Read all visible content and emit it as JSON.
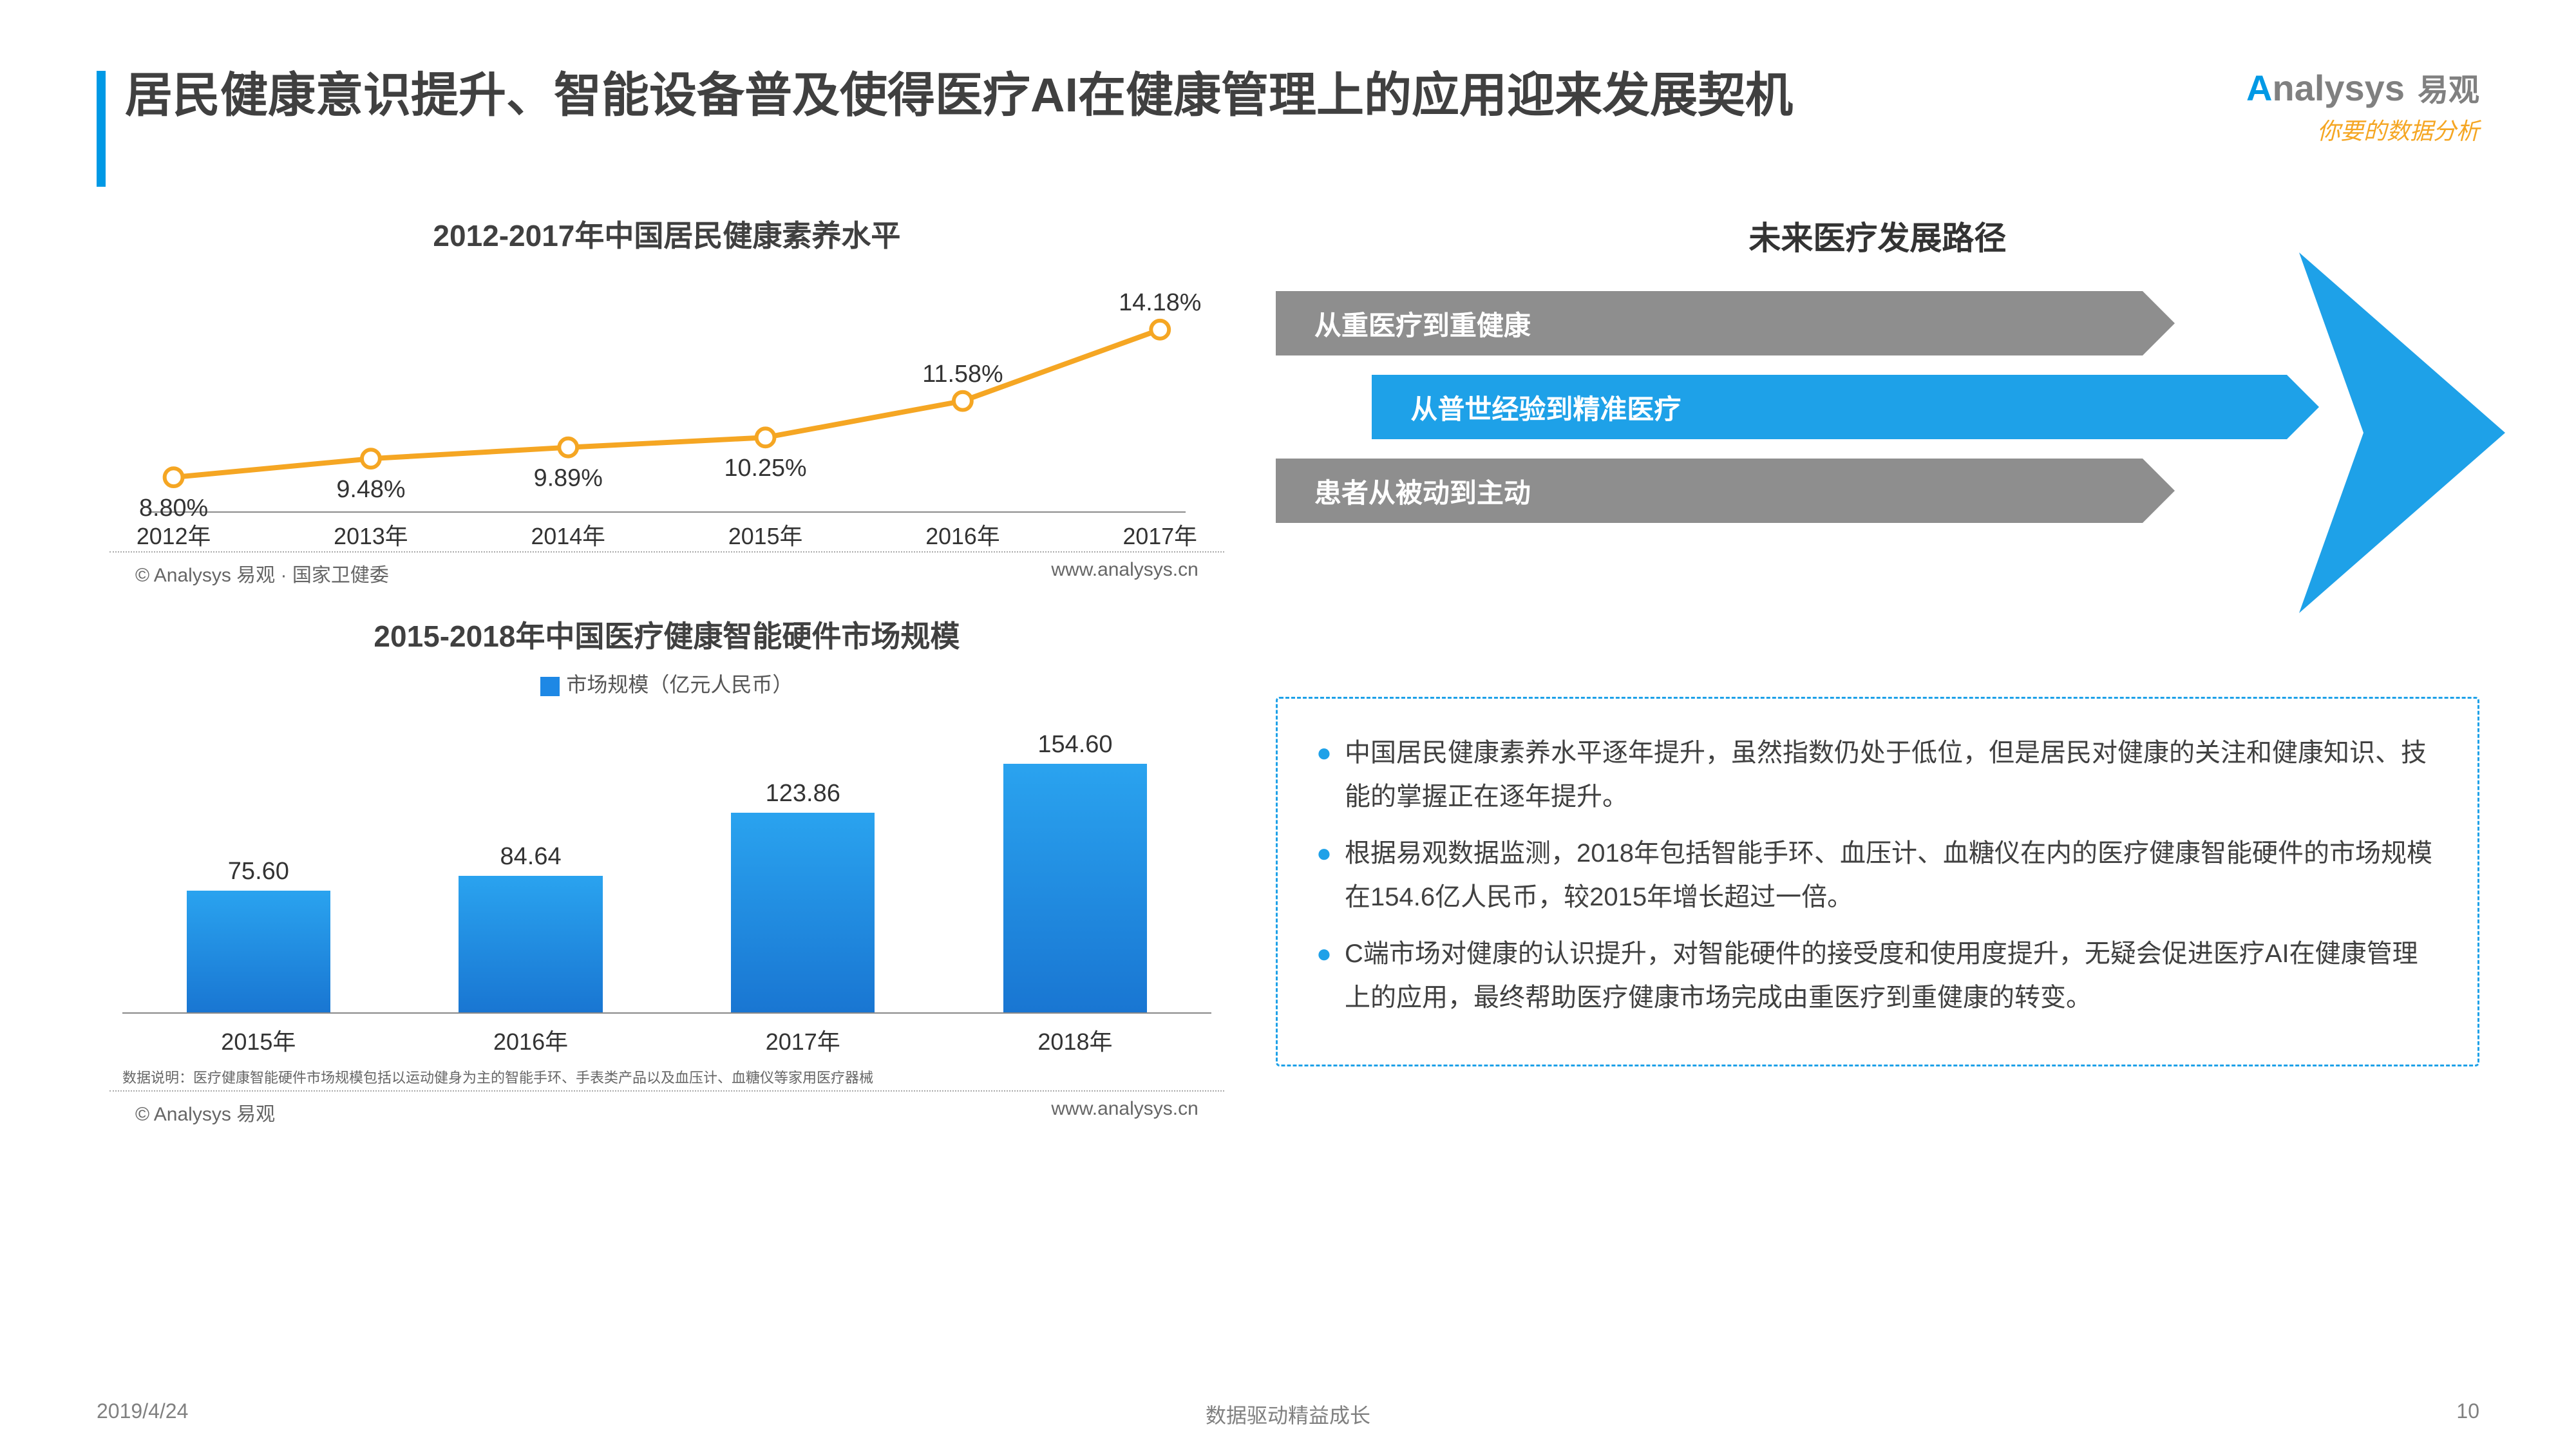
{
  "title": "居民健康意识提升、智能设备普及使得医疗AI在健康管理上的应用迎来发展契机",
  "logo": {
    "text_en": "nalysys",
    "prefix": "A",
    "text_cn": "易观",
    "tagline": "你要的数据分析"
  },
  "line_chart": {
    "type": "line",
    "title": "2012-2017年中国居民健康素养水平",
    "categories": [
      "2012年",
      "2013年",
      "2014年",
      "2015年",
      "2016年",
      "2017年"
    ],
    "values": [
      8.8,
      9.48,
      9.89,
      10.25,
      11.58,
      14.18
    ],
    "value_labels": [
      "8.80%",
      "9.48%",
      "9.89%",
      "10.25%",
      "11.58%",
      "14.18%"
    ],
    "line_color": "#f5a623",
    "marker_fill": "#ffffff",
    "marker_stroke": "#f5a623",
    "marker_radius": 14,
    "line_width": 8,
    "label_fontsize": 38,
    "xaxis_fontsize": 36,
    "ylim": [
      8,
      15
    ],
    "source_left": "© Analysys 易观 · 国家卫健委",
    "source_right": "www.analysys.cn"
  },
  "bar_chart": {
    "type": "bar",
    "title": "2015-2018年中国医疗健康智能硬件市场规模",
    "legend": "市场规模（亿元人民币）",
    "legend_color": "#1e88e5",
    "categories": [
      "2015年",
      "2016年",
      "2017年",
      "2018年"
    ],
    "values": [
      75.6,
      84.64,
      123.86,
      154.6
    ],
    "value_labels": [
      "75.60",
      "84.64",
      "123.86",
      "154.60"
    ],
    "bar_color_top": "#2aa3ef",
    "bar_color_bottom": "#1976d2",
    "ylim": [
      0,
      160
    ],
    "note": "数据说明：医疗健康智能硬件市场规模包括以运动健身为主的智能手环、手表类产品以及血压计、血糖仪等家用医疗器械",
    "source_left": "© Analysys 易观",
    "source_right": "www.analysys.cn"
  },
  "path_diagram": {
    "title": "未来医疗发展路径",
    "arrows": [
      {
        "label": "从重医疗到重健康",
        "color": "gray",
        "width_pct": 72,
        "indent_pct": 0
      },
      {
        "label": "从普世经验到精准医疗",
        "color": "blue",
        "width_pct": 76,
        "indent_pct": 8
      },
      {
        "label": "患者从被动到主动",
        "color": "gray",
        "width_pct": 72,
        "indent_pct": 0
      }
    ],
    "big_arrow_color": "#1ea1e8"
  },
  "bullets": [
    "中国居民健康素养水平逐年提升，虽然指数仍处于低位，但是居民对健康的关注和健康知识、技能的掌握正在逐年提升。",
    "根据易观数据监测，2018年包括智能手环、血压计、血糖仪在内的医疗健康智能硬件的市场规模在154.6亿人民币，较2015年增长超过一倍。",
    "C端市场对健康的认识提升，对智能硬件的接受度和使用度提升，无疑会促进医疗AI在健康管理上的应用，最终帮助医疗健康市场完成由重医疗到重健康的转变。"
  ],
  "footer": {
    "date": "2019/4/24",
    "center": "数据驱动精益成长",
    "page": "10"
  }
}
